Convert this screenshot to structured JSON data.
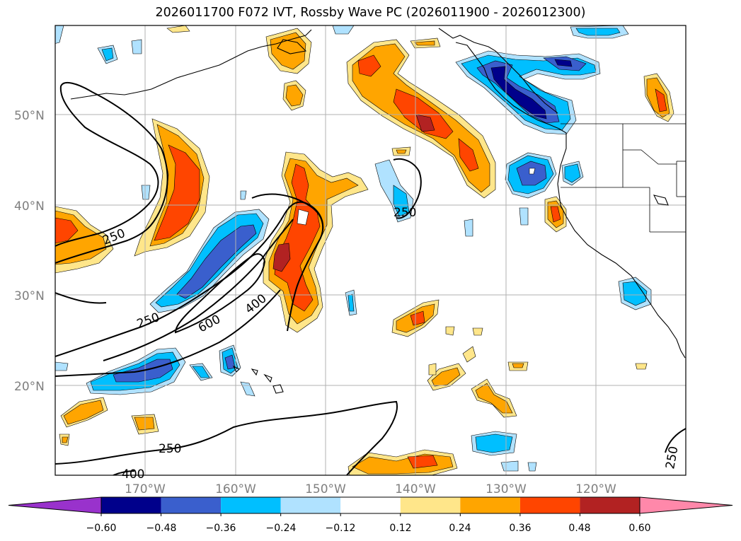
{
  "title": "2026011700 F072 IVT, Rossby Wave PC (2026011900 - 2026012300)",
  "lat_labels": [
    "50°N",
    "40°N",
    "30°N",
    "20°N"
  ],
  "lon_labels": [
    "170°W",
    "160°W",
    "150°W",
    "140°W",
    "130°W",
    "120°W"
  ],
  "contour_labels": [
    "250",
    "250",
    "250",
    "250",
    "400",
    "400",
    "600",
    "250"
  ],
  "colorbar": {
    "tick_labels": [
      "−0.60",
      "−0.48",
      "−0.36",
      "−0.24",
      "−0.12",
      "0.12",
      "0.24",
      "0.36",
      "0.48",
      "0.60"
    ],
    "colors": [
      "#9932cc",
      "#00008b",
      "#3a5fcd",
      "#00bfff",
      "#b0e2ff",
      "#ffffff",
      "#ffe68a",
      "#ffa500",
      "#ff4500",
      "#b22222",
      "#ff88aa"
    ]
  },
  "fill_colors": {
    "neg1": "#b0e2ff",
    "neg2": "#00bfff",
    "neg3": "#3a5fcd",
    "neg4": "#00008b",
    "pos1": "#ffe68a",
    "pos2": "#ffa500",
    "pos3": "#ff4500",
    "pos4": "#b22222"
  }
}
